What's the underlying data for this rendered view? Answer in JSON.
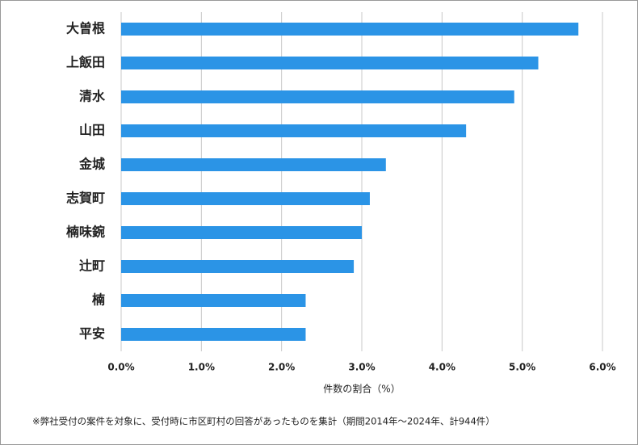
{
  "chart_data": {
    "type": "bar",
    "orientation": "horizontal",
    "categories": [
      "大曽根",
      "上飯田",
      "清水",
      "山田",
      "金城",
      "志賀町",
      "楠味鋺",
      "辻町",
      "楠",
      "平安"
    ],
    "values": [
      5.7,
      5.2,
      4.9,
      4.3,
      3.3,
      3.1,
      3.0,
      2.9,
      2.3,
      2.3
    ],
    "color": "#2b94e6",
    "xlim": [
      0,
      6
    ],
    "xticks": [
      {
        "value": 0,
        "label": "0.0%"
      },
      {
        "value": 1,
        "label": "1.0%"
      },
      {
        "value": 2,
        "label": "2.0%"
      },
      {
        "value": 3,
        "label": "3.0%"
      },
      {
        "value": 4,
        "label": "4.0%"
      },
      {
        "value": 5,
        "label": "5.0%"
      },
      {
        "value": 6,
        "label": "6.0%"
      }
    ],
    "grid": true,
    "x_label": "件数の割合（%）",
    "note": "※弊社受付の案件を対象に、受付時に市区町村の回答があったものを集計（期間2014年～2024年、計944件）"
  }
}
